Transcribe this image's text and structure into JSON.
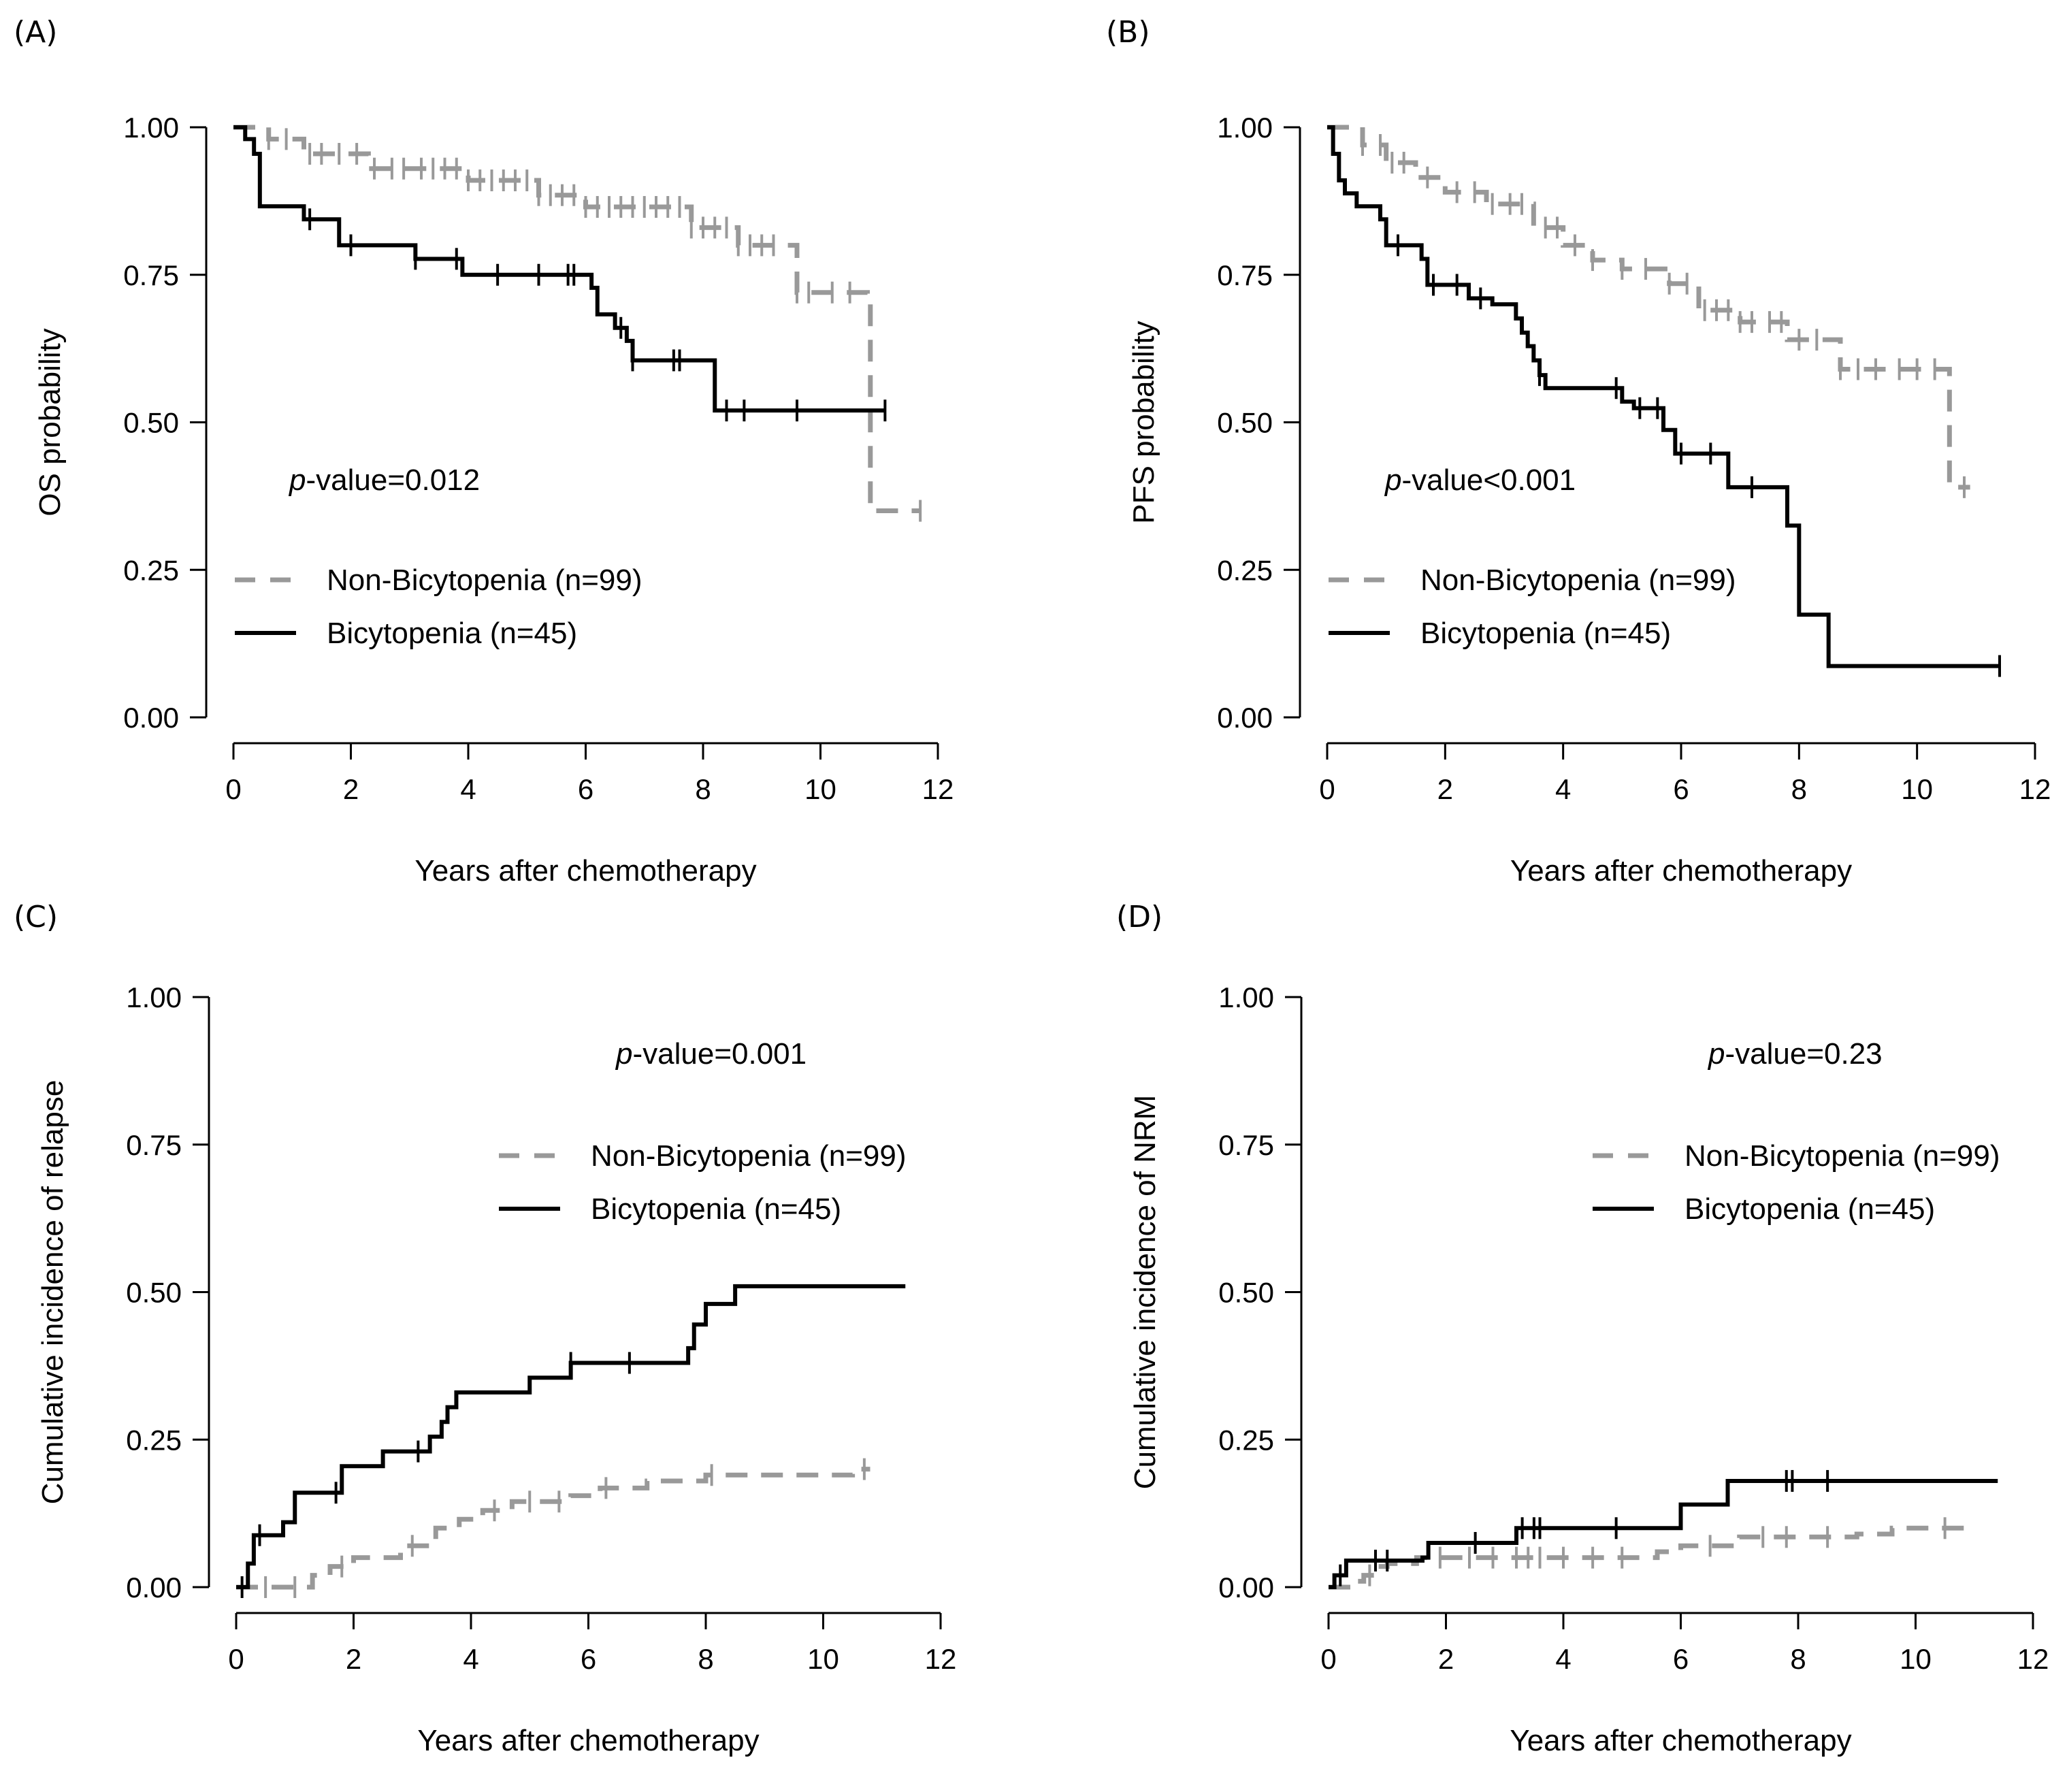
{
  "colors": {
    "black": "#000000",
    "grey": "#999999"
  },
  "chart_data": [
    {
      "panel": "(A)",
      "type": "line",
      "step": true,
      "ylabel": "OS probability",
      "xlabel": "Years after chemotherapy",
      "xlim": [
        0,
        12
      ],
      "ylim": [
        0,
        1
      ],
      "x_ticks": [
        "0",
        "2",
        "4",
        "6",
        "8",
        "10",
        "12"
      ],
      "y_ticks": [
        "0.00",
        "0.25",
        "0.50",
        "0.75",
        "1.00"
      ],
      "pvalue": "=0.012",
      "legend_position": "left-middle",
      "series": [
        {
          "name": "Non-Bicytopenia (n=99)",
          "style": "dashed",
          "color": "#999999",
          "points": [
            [
              0,
              1
            ],
            [
              0.6,
              0.98
            ],
            [
              1.2,
              0.955
            ],
            [
              2.3,
              0.93
            ],
            [
              4.0,
              0.91
            ],
            [
              5.2,
              0.885
            ],
            [
              6.0,
              0.865
            ],
            [
              7.8,
              0.83
            ],
            [
              8.6,
              0.8
            ],
            [
              9.6,
              0.72
            ],
            [
              10.8,
              0.7
            ],
            [
              10.85,
              0.35
            ],
            [
              11.7,
              0.35
            ]
          ],
          "censor_x": [
            0.6,
            0.9,
            1.3,
            1.5,
            1.8,
            2.1,
            2.4,
            2.7,
            2.9,
            3.2,
            3.4,
            3.6,
            3.8,
            4.0,
            4.2,
            4.4,
            4.6,
            4.8,
            5.0,
            5.2,
            5.4,
            5.6,
            5.8,
            6.0,
            6.2,
            6.4,
            6.6,
            6.8,
            7.0,
            7.2,
            7.4,
            7.6,
            7.8,
            8.0,
            8.2,
            8.4,
            8.6,
            8.8,
            9.0,
            9.2,
            9.6,
            9.8,
            10.2,
            10.5,
            11.7
          ]
        },
        {
          "name": "Bicytopenia (n=45)",
          "style": "solid",
          "color": "#000000",
          "points": [
            [
              0,
              1
            ],
            [
              0.2,
              0.98
            ],
            [
              0.35,
              0.955
            ],
            [
              0.45,
              0.866
            ],
            [
              1.2,
              0.844
            ],
            [
              1.8,
              0.8
            ],
            [
              3.1,
              0.777
            ],
            [
              3.9,
              0.75
            ],
            [
              5.9,
              0.75
            ],
            [
              6.1,
              0.728
            ],
            [
              6.2,
              0.683
            ],
            [
              6.5,
              0.66
            ],
            [
              6.7,
              0.638
            ],
            [
              6.8,
              0.605
            ],
            [
              8.2,
              0.605
            ],
            [
              8.2,
              0.52
            ],
            [
              11.1,
              0.52
            ]
          ],
          "censor_x": [
            1.3,
            2.0,
            3.1,
            3.8,
            4.5,
            5.2,
            5.7,
            5.8,
            6.6,
            6.8,
            7.5,
            7.6,
            8.4,
            8.7,
            9.6,
            11.1
          ]
        }
      ]
    },
    {
      "panel": "(B)",
      "type": "line",
      "step": true,
      "ylabel": "PFS probability",
      "xlabel": "Years after chemotherapy",
      "xlim": [
        0,
        12
      ],
      "ylim": [
        0,
        1
      ],
      "x_ticks": [
        "0",
        "2",
        "4",
        "6",
        "8",
        "10",
        "12"
      ],
      "y_ticks": [
        "0.00",
        "0.25",
        "0.50",
        "0.75",
        "1.00"
      ],
      "pvalue": "<0.001",
      "legend_position": "left-lower",
      "series": [
        {
          "name": "Non-Bicytopenia (n=99)",
          "style": "dashed",
          "color": "#999999",
          "points": [
            [
              0,
              1
            ],
            [
              0.6,
              0.97
            ],
            [
              1.0,
              0.94
            ],
            [
              1.5,
              0.915
            ],
            [
              2.0,
              0.89
            ],
            [
              2.7,
              0.87
            ],
            [
              3.5,
              0.83
            ],
            [
              4.0,
              0.8
            ],
            [
              4.5,
              0.775
            ],
            [
              5.0,
              0.76
            ],
            [
              5.8,
              0.735
            ],
            [
              6.3,
              0.69
            ],
            [
              7.0,
              0.67
            ],
            [
              7.8,
              0.64
            ],
            [
              8.7,
              0.59
            ],
            [
              10.5,
              0.59
            ],
            [
              10.55,
              0.39
            ],
            [
              10.9,
              0.39
            ]
          ],
          "censor_x": [
            0.6,
            0.9,
            1.1,
            1.3,
            1.7,
            2.2,
            2.5,
            2.8,
            3.1,
            3.3,
            3.7,
            3.9,
            4.2,
            4.5,
            5.0,
            5.4,
            5.8,
            6.1,
            6.4,
            6.6,
            6.8,
            7.0,
            7.2,
            7.5,
            7.7,
            8.0,
            8.3,
            8.7,
            9.0,
            9.3,
            9.7,
            10.0,
            10.3,
            10.8
          ]
        },
        {
          "name": "Bicytopenia (n=45)",
          "style": "solid",
          "color": "#000000",
          "points": [
            [
              0,
              1
            ],
            [
              0.1,
              0.955
            ],
            [
              0.2,
              0.91
            ],
            [
              0.3,
              0.888
            ],
            [
              0.5,
              0.866
            ],
            [
              0.9,
              0.844
            ],
            [
              1.0,
              0.8
            ],
            [
              1.6,
              0.777
            ],
            [
              1.7,
              0.733
            ],
            [
              2.4,
              0.71
            ],
            [
              2.8,
              0.7
            ],
            [
              3.2,
              0.676
            ],
            [
              3.3,
              0.652
            ],
            [
              3.4,
              0.629
            ],
            [
              3.5,
              0.605
            ],
            [
              3.6,
              0.58
            ],
            [
              3.7,
              0.558
            ],
            [
              5.0,
              0.535
            ],
            [
              5.2,
              0.524
            ],
            [
              5.7,
              0.487
            ],
            [
              5.9,
              0.447
            ],
            [
              6.8,
              0.39
            ],
            [
              7.7,
              0.39
            ],
            [
              7.8,
              0.325
            ],
            [
              8.0,
              0.26
            ],
            [
              8.0,
              0.174
            ],
            [
              8.5,
              0.087
            ],
            [
              11.4,
              0.087
            ]
          ],
          "censor_x": [
            1.2,
            1.8,
            2.2,
            2.6,
            3.6,
            4.9,
            5.3,
            5.6,
            6.0,
            6.5,
            7.2,
            11.4
          ]
        }
      ]
    },
    {
      "panel": "(C)",
      "type": "line",
      "step": true,
      "ylabel": "Cumulative incidence of relapse",
      "xlabel": "Years after chemotherapy",
      "xlim": [
        0,
        12
      ],
      "ylim": [
        0,
        1
      ],
      "x_ticks": [
        "0",
        "2",
        "4",
        "6",
        "8",
        "10",
        "12"
      ],
      "y_ticks": [
        "0.00",
        "0.25",
        "0.50",
        "0.75",
        "1.00"
      ],
      "pvalue": "=0.001",
      "legend_position": "top-right",
      "series": [
        {
          "name": "Non-Bicytopenia (n=99)",
          "style": "dashed",
          "color": "#999999",
          "points": [
            [
              0,
              0
            ],
            [
              1.2,
              0.0
            ],
            [
              1.3,
              0.02
            ],
            [
              1.6,
              0.035
            ],
            [
              2.0,
              0.05
            ],
            [
              2.8,
              0.07
            ],
            [
              3.4,
              0.1
            ],
            [
              3.8,
              0.115
            ],
            [
              4.2,
              0.13
            ],
            [
              4.7,
              0.145
            ],
            [
              5.7,
              0.155
            ],
            [
              6.2,
              0.168
            ],
            [
              7.0,
              0.18
            ],
            [
              8.0,
              0.19
            ],
            [
              10.5,
              0.2
            ],
            [
              10.8,
              0.2
            ]
          ],
          "censor_x": [
            0.5,
            1.0,
            1.8,
            3.0,
            4.4,
            5.0,
            5.5,
            6.3,
            8.1,
            10.7
          ]
        },
        {
          "name": "Bicytopenia (n=45)",
          "style": "solid",
          "color": "#000000",
          "points": [
            [
              0,
              0
            ],
            [
              0.2,
              0.04
            ],
            [
              0.3,
              0.088
            ],
            [
              0.8,
              0.11
            ],
            [
              1.0,
              0.16
            ],
            [
              1.8,
              0.205
            ],
            [
              2.5,
              0.23
            ],
            [
              3.3,
              0.255
            ],
            [
              3.5,
              0.28
            ],
            [
              3.6,
              0.305
            ],
            [
              3.75,
              0.33
            ],
            [
              5.0,
              0.355
            ],
            [
              5.7,
              0.38
            ],
            [
              7.7,
              0.405
            ],
            [
              7.8,
              0.445
            ],
            [
              8.0,
              0.48
            ],
            [
              8.5,
              0.51
            ],
            [
              11.4,
              0.51
            ]
          ],
          "censor_x": [
            0.1,
            0.4,
            1.7,
            3.1,
            5.7,
            6.7
          ]
        }
      ]
    },
    {
      "panel": "(D)",
      "type": "line",
      "step": true,
      "ylabel": "Cumulative incidence of NRM",
      "xlabel": "Years after chemotherapy",
      "xlim": [
        0,
        12
      ],
      "ylim": [
        0,
        1
      ],
      "x_ticks": [
        "0",
        "2",
        "4",
        "6",
        "8",
        "10",
        "12"
      ],
      "y_ticks": [
        "0.00",
        "0.25",
        "0.50",
        "0.75",
        "1.00"
      ],
      "pvalue": "=0.23",
      "legend_position": "top-right",
      "series": [
        {
          "name": "Non-Bicytopenia (n=99)",
          "style": "dashed",
          "color": "#999999",
          "points": [
            [
              0,
              0
            ],
            [
              0.4,
              0.01
            ],
            [
              0.6,
              0.02
            ],
            [
              0.8,
              0.035
            ],
            [
              1.0,
              0.04
            ],
            [
              1.5,
              0.05
            ],
            [
              5.2,
              0.05
            ],
            [
              5.6,
              0.06
            ],
            [
              6.0,
              0.07
            ],
            [
              7.0,
              0.085
            ],
            [
              9.0,
              0.09
            ],
            [
              9.6,
              0.1
            ],
            [
              11.0,
              0.1
            ]
          ],
          "censor_x": [
            0.7,
            1.9,
            2.4,
            2.8,
            3.2,
            3.4,
            3.6,
            4.0,
            4.5,
            5.0,
            6.5,
            7.4,
            7.8,
            8.5,
            10.5
          ]
        },
        {
          "name": "Bicytopenia (n=45)",
          "style": "solid",
          "color": "#000000",
          "points": [
            [
              0,
              0
            ],
            [
              0.1,
              0.02
            ],
            [
              0.3,
              0.045
            ],
            [
              1.6,
              0.05
            ],
            [
              1.7,
              0.075
            ],
            [
              3.1,
              0.075
            ],
            [
              3.2,
              0.1
            ],
            [
              5.9,
              0.1
            ],
            [
              6.0,
              0.14
            ],
            [
              6.8,
              0.18
            ],
            [
              11.4,
              0.18
            ]
          ],
          "censor_x": [
            0.2,
            0.8,
            1.0,
            2.5,
            3.3,
            3.5,
            3.6,
            4.9,
            7.8,
            7.9,
            8.5
          ]
        }
      ]
    }
  ]
}
